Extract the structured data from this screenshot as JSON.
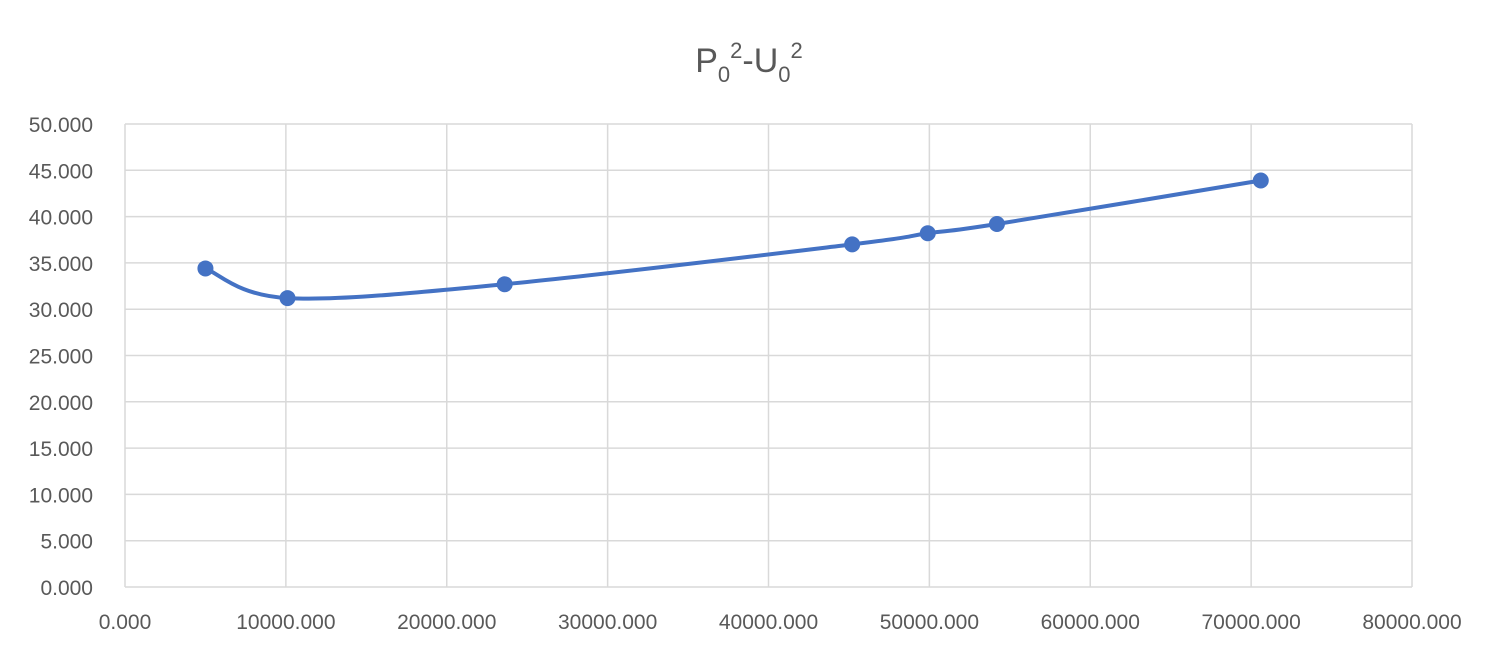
{
  "chart_data": {
    "type": "scatter",
    "title": {
      "parts": [
        {
          "text": "P",
          "style": "normal"
        },
        {
          "text": "0",
          "style": "sub"
        },
        {
          "text": "2",
          "style": "sup"
        },
        {
          "text": "-U",
          "style": "normal"
        },
        {
          "text": "0",
          "style": "sub"
        },
        {
          "text": "2",
          "style": "sup"
        }
      ]
    },
    "xlabel": "",
    "ylabel": "",
    "xlim": [
      0,
      80000
    ],
    "ylim": [
      0,
      50
    ],
    "xticks": [
      0,
      10000,
      20000,
      30000,
      40000,
      50000,
      60000,
      70000,
      80000
    ],
    "xtick_labels": [
      "0.000",
      "10000.000",
      "20000.000",
      "30000.000",
      "40000.000",
      "50000.000",
      "60000.000",
      "70000.000",
      "80000.000"
    ],
    "yticks": [
      0,
      5,
      10,
      15,
      20,
      25,
      30,
      35,
      40,
      45,
      50
    ],
    "ytick_labels": [
      "0.000",
      "5.000",
      "10.000",
      "15.000",
      "20.000",
      "25.000",
      "30.000",
      "35.000",
      "40.000",
      "45.000",
      "50.000"
    ],
    "grid": true,
    "smooth": true,
    "legend": "none",
    "series": [
      {
        "color": "#4472c4",
        "x": [
          5000,
          10100,
          23600,
          45200,
          49900,
          54200,
          70600
        ],
        "y": [
          34.4,
          31.2,
          32.7,
          37.0,
          38.2,
          39.2,
          43.9
        ]
      }
    ]
  }
}
